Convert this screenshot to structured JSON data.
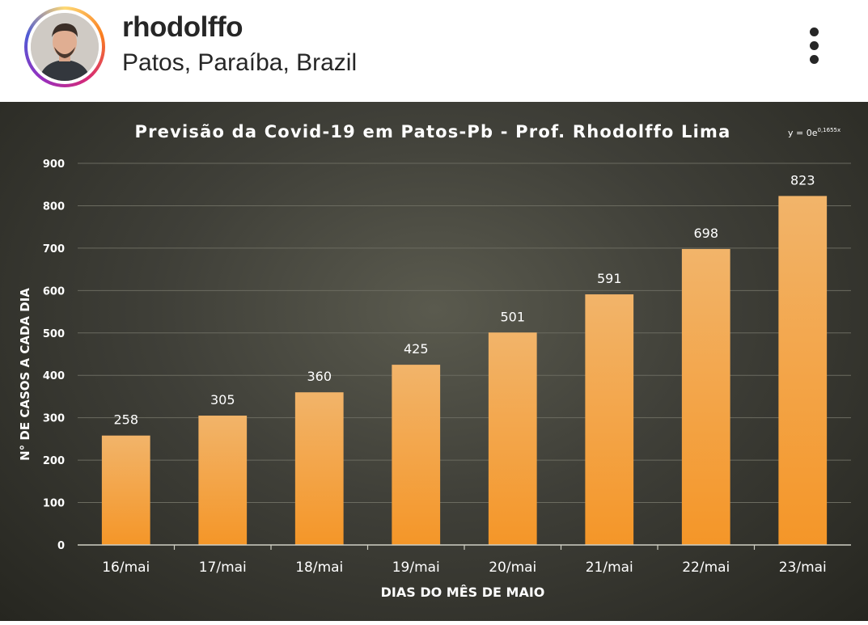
{
  "post": {
    "username": "rhodolffo",
    "location": "Patos, Paraíba, Brazil"
  },
  "icons": {
    "avatar": "profile-photo",
    "more": "more-vertical-icon"
  },
  "colors": {
    "bar_top": "#f2b46a",
    "bar_bottom": "#f49628",
    "chart_background": "#3f3f38",
    "text": "#ffffff"
  },
  "chart_data": {
    "type": "bar",
    "title": "Previsão da Covid-19 em Patos-Pb - Prof. Rhodolffo Lima",
    "equation": "y = 0e",
    "equation_exponent": "0,1655x",
    "categories": [
      "16/mai",
      "17/mai",
      "18/mai",
      "19/mai",
      "20/mai",
      "21/mai",
      "22/mai",
      "23/mai"
    ],
    "values": [
      258,
      305,
      360,
      425,
      501,
      591,
      698,
      823
    ],
    "xlabel": "DIAS DO MÊS DE MAIO",
    "ylabel": "N° DE CASOS A CADA DIA",
    "ylim": [
      0,
      900
    ],
    "yticks": [
      0,
      100,
      200,
      300,
      400,
      500,
      600,
      700,
      800,
      900
    ],
    "grid": true,
    "data_labels": true
  }
}
